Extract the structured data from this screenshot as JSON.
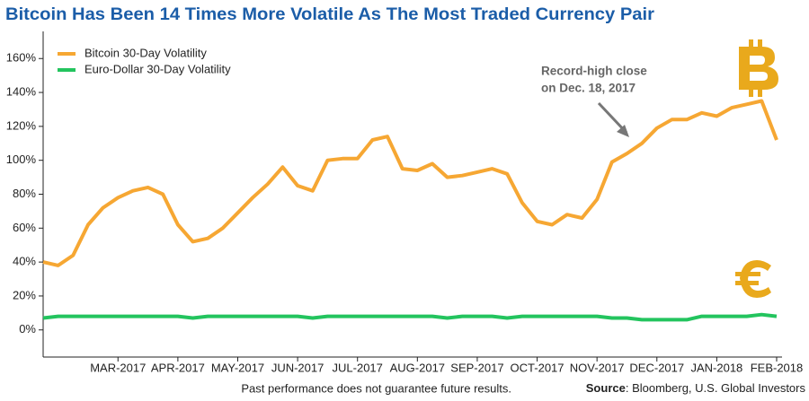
{
  "chart_data": {
    "type": "line",
    "title": "Bitcoin Has Been 14 Times More Volatile As The Most Traded Currency Pair",
    "categories": [
      null,
      null,
      null,
      null,
      null,
      "MAR-2017",
      null,
      null,
      null,
      "APR-2017",
      null,
      null,
      null,
      "MAY-2017",
      null,
      null,
      null,
      "JUN-2017",
      null,
      null,
      null,
      "JUL-2017",
      null,
      null,
      null,
      "AUG-2017",
      null,
      null,
      null,
      "SEP-2017",
      null,
      null,
      null,
      "OCT-2017",
      null,
      null,
      null,
      "NOV-2017",
      null,
      null,
      null,
      "DEC-2017",
      null,
      null,
      null,
      "JAN-2018",
      null,
      null,
      null,
      "FEB-2018"
    ],
    "series": [
      {
        "name": "Bitcoin 30-Day Volatility",
        "color": "#f6a733",
        "values": [
          40,
          38,
          44,
          62,
          72,
          78,
          82,
          84,
          80,
          62,
          52,
          54,
          60,
          69,
          78,
          86,
          96,
          85,
          82,
          100,
          101,
          101,
          112,
          114,
          95,
          94,
          98,
          90,
          91,
          93,
          95,
          92,
          75,
          64,
          62,
          68,
          66,
          77,
          99,
          104,
          110,
          119,
          124,
          124,
          128,
          126,
          131,
          133,
          135,
          112
        ]
      },
      {
        "name": "Euro-Dollar 30-Day Volatility",
        "color": "#23c45e",
        "values": [
          7,
          8,
          8,
          8,
          8,
          8,
          8,
          8,
          8,
          8,
          7,
          8,
          8,
          8,
          8,
          8,
          8,
          8,
          7,
          8,
          8,
          8,
          8,
          8,
          8,
          8,
          8,
          7,
          8,
          8,
          8,
          7,
          8,
          8,
          8,
          8,
          8,
          8,
          7,
          7,
          6,
          6,
          6,
          6,
          8,
          8,
          8,
          8,
          9,
          8
        ]
      }
    ],
    "ylim": [
      -16,
      176
    ],
    "yticks": [
      {
        "value": 0,
        "label": "0%"
      },
      {
        "value": 20,
        "label": "20%"
      },
      {
        "value": 40,
        "label": "40%"
      },
      {
        "value": 60,
        "label": "60%"
      },
      {
        "value": 80,
        "label": "80%"
      },
      {
        "value": 100,
        "label": "100%"
      },
      {
        "value": 120,
        "label": "120%"
      },
      {
        "value": 140,
        "label": "140%"
      },
      {
        "value": 160,
        "label": "160%"
      }
    ],
    "legend": "upper left",
    "annotation": [
      "Record-high close",
      "on Dec. 18, 2017"
    ],
    "footnote": "Past performance does not guarantee future results.",
    "source_label": "Source",
    "source": ": Bloomberg, U.S. Global Investors"
  }
}
